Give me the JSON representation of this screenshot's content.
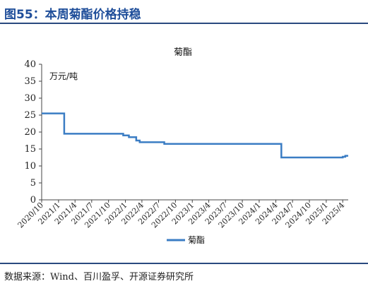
{
  "figure": {
    "title": "图55：本周菊酯价格持稳",
    "source": "数据来源：Wind、百川盈孚、开源证券研究所"
  },
  "colors": {
    "title": "#1f4e9a",
    "series": "#3b7dc4",
    "rule": "#2a4a7f"
  },
  "chart_data": {
    "type": "line",
    "title": "菊酯",
    "unit_label": "万元/吨",
    "ylim": [
      0,
      40
    ],
    "yticks": [
      0,
      5,
      10,
      15,
      20,
      25,
      30,
      35,
      40
    ],
    "xlim": [
      "2020-10-01",
      "2025-05-01"
    ],
    "xticks": [
      "2020/10",
      "2021/1",
      "2021/4",
      "2021/7",
      "2021/10",
      "2022/1",
      "2022/4",
      "2022/7",
      "2022/10",
      "2023/1",
      "2023/4",
      "2023/7",
      "2023/10",
      "2024/1",
      "2024/4",
      "2024/7",
      "2024/10",
      "2025/1",
      "2025/4"
    ],
    "grid": false,
    "legend_position": "bottom",
    "series": [
      {
        "name": "菊酯",
        "step": true,
        "points": [
          {
            "x": "2020-10-01",
            "y": 25.5
          },
          {
            "x": "2021-02-01",
            "y": 19.5
          },
          {
            "x": "2021-12-20",
            "y": 19.0
          },
          {
            "x": "2022-01-20",
            "y": 18.5
          },
          {
            "x": "2022-03-01",
            "y": 17.5
          },
          {
            "x": "2022-03-20",
            "y": 17.0
          },
          {
            "x": "2022-08-01",
            "y": 16.5
          },
          {
            "x": "2024-05-01",
            "y": 12.5
          },
          {
            "x": "2025-04-01",
            "y": 12.7
          },
          {
            "x": "2025-04-15",
            "y": 13.0
          },
          {
            "x": "2025-05-01",
            "y": 13.0
          }
        ]
      }
    ]
  }
}
